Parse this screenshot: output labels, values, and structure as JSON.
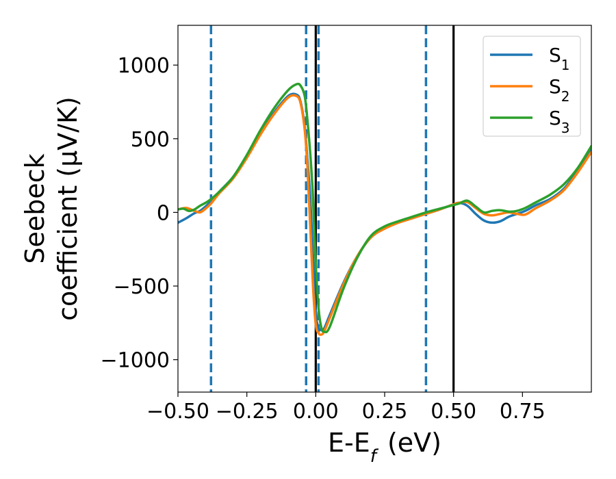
{
  "chart_data": {
    "type": "line",
    "xlabel": "E-E_f (eV)",
    "ylabel_line1": "Seebeck",
    "ylabel_line2": "coefficient  (μV/K)",
    "xlim": [
      -0.5,
      1.0
    ],
    "ylim": [
      -1220,
      1270
    ],
    "x_ticks": [
      -0.5,
      -0.25,
      0.0,
      0.25,
      0.5,
      0.75
    ],
    "x_tick_labels": [
      "−0.50",
      "−0.25",
      "0.00",
      "0.25",
      "0.50",
      "0.75"
    ],
    "y_ticks": [
      -1000,
      -500,
      0,
      500,
      1000
    ],
    "y_tick_labels": [
      "−1000",
      "−500",
      "0",
      "500",
      "1000"
    ],
    "grid": false,
    "legend_position": "top-right",
    "vlines": [
      {
        "x": -0.38,
        "style": "dashed",
        "color": "#1f77b4"
      },
      {
        "x": -0.035,
        "style": "dashed",
        "color": "#1f77b4"
      },
      {
        "x": 0.01,
        "style": "dashed",
        "color": "#1f77b4"
      },
      {
        "x": 0.4,
        "style": "dashed",
        "color": "#1f77b4"
      },
      {
        "x": 0.0,
        "style": "solid",
        "color": "#000000"
      },
      {
        "x": 0.5,
        "style": "solid",
        "color": "#000000"
      }
    ],
    "series": [
      {
        "name": "S1",
        "name_base": "S",
        "name_sub": "1",
        "color": "#1f77b4",
        "x": [
          -0.5,
          -0.47,
          -0.44,
          -0.42,
          -0.4,
          -0.38,
          -0.35,
          -0.3,
          -0.25,
          -0.2,
          -0.15,
          -0.1,
          -0.07,
          -0.055,
          -0.04,
          -0.03,
          -0.02,
          -0.01,
          0.0,
          0.01,
          0.02,
          0.03,
          0.05,
          0.1,
          0.15,
          0.2,
          0.25,
          0.3,
          0.35,
          0.4,
          0.45,
          0.5,
          0.52,
          0.55,
          0.58,
          0.61,
          0.64,
          0.67,
          0.7,
          0.73,
          0.76,
          0.8,
          0.85,
          0.9,
          0.95,
          1.0
        ],
        "y": [
          -70,
          -40,
          -5,
          10,
          40,
          75,
          140,
          240,
          380,
          540,
          680,
          790,
          800,
          750,
          580,
          350,
          100,
          -300,
          -680,
          -780,
          -800,
          -790,
          -700,
          -480,
          -300,
          -170,
          -110,
          -70,
          -40,
          -10,
          20,
          55,
          65,
          45,
          -10,
          -55,
          -70,
          -60,
          -30,
          -10,
          10,
          50,
          90,
          160,
          280,
          420
        ]
      },
      {
        "name": "S2",
        "name_base": "S",
        "name_sub": "2",
        "color": "#ff7f0e",
        "x": [
          -0.5,
          -0.47,
          -0.44,
          -0.42,
          -0.4,
          -0.38,
          -0.35,
          -0.3,
          -0.25,
          -0.2,
          -0.15,
          -0.1,
          -0.07,
          -0.055,
          -0.04,
          -0.03,
          -0.02,
          -0.01,
          0.0,
          0.01,
          0.02,
          0.03,
          0.05,
          0.1,
          0.15,
          0.2,
          0.25,
          0.3,
          0.35,
          0.4,
          0.45,
          0.5,
          0.52,
          0.55,
          0.58,
          0.61,
          0.64,
          0.67,
          0.7,
          0.73,
          0.76,
          0.8,
          0.85,
          0.9,
          0.95,
          1.0
        ],
        "y": [
          20,
          30,
          10,
          0,
          25,
          60,
          130,
          230,
          370,
          530,
          670,
          780,
          790,
          740,
          560,
          300,
          -100,
          -500,
          -760,
          -820,
          -830,
          -810,
          -720,
          -490,
          -300,
          -170,
          -110,
          -70,
          -40,
          -10,
          20,
          55,
          65,
          70,
          30,
          -10,
          -20,
          -10,
          0,
          -10,
          -15,
          30,
          80,
          150,
          270,
          410
        ]
      },
      {
        "name": "S3",
        "name_base": "S",
        "name_sub": "3",
        "color": "#2ca02c",
        "x": [
          -0.5,
          -0.48,
          -0.46,
          -0.44,
          -0.42,
          -0.4,
          -0.38,
          -0.35,
          -0.3,
          -0.25,
          -0.2,
          -0.15,
          -0.1,
          -0.07,
          -0.055,
          -0.04,
          -0.03,
          -0.02,
          -0.01,
          0.0,
          0.01,
          0.02,
          0.03,
          0.05,
          0.1,
          0.15,
          0.2,
          0.25,
          0.3,
          0.35,
          0.4,
          0.45,
          0.5,
          0.52,
          0.55,
          0.58,
          0.61,
          0.64,
          0.67,
          0.7,
          0.73,
          0.76,
          0.8,
          0.85,
          0.9,
          0.95,
          1.0
        ],
        "y": [
          20,
          25,
          10,
          20,
          45,
          65,
          90,
          140,
          240,
          390,
          560,
          710,
          830,
          870,
          860,
          790,
          620,
          400,
          100,
          -350,
          -650,
          -780,
          -810,
          -780,
          -520,
          -310,
          -160,
          -95,
          -60,
          -30,
          0,
          25,
          50,
          60,
          80,
          40,
          0,
          10,
          15,
          5,
          10,
          30,
          70,
          120,
          190,
          300,
          450
        ]
      }
    ]
  }
}
